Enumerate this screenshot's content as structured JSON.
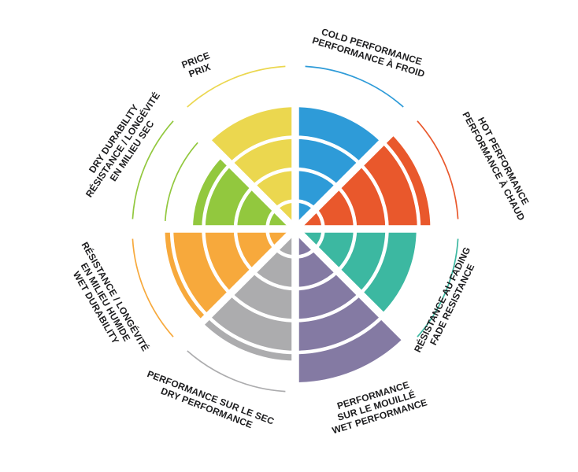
{
  "page": {
    "background": "#ffffff"
  },
  "chart_data": {
    "type": "polar-wheel",
    "title": "",
    "description_visible_text_only": "Eight-sector performance wheel, each sector filled to its rating level",
    "scale": {
      "min": 0,
      "max": 10,
      "gridline_values": [
        2,
        4,
        6,
        8
      ],
      "outer_marker_value": 10.5
    },
    "legend_position": "around-wheel",
    "grid": true,
    "segments": [
      {
        "id": "cold-performance",
        "label_lines": [
          "COLD PERFORMANCE",
          "PERFORMANCE À FROID"
        ],
        "value": 8.0,
        "color": "#2E9BD8",
        "outer_arc": true
      },
      {
        "id": "hot-performance",
        "label_lines": [
          "HOT PERFORMANCE",
          "PERFORMANCE À CHAUD"
        ],
        "value": 8.7,
        "color": "#E9582C",
        "outer_arc": true
      },
      {
        "id": "fade-resistance",
        "label_lines": [
          "RÉSISTANCE AU FADING",
          "FADE RESISTANCE"
        ],
        "value": 7.8,
        "color": "#3CB8A1",
        "outer_arc": true
      },
      {
        "id": "wet-performance",
        "label_lines": [
          "PERFORMANCE",
          "SUR LE MOUILLÉ",
          "WET PERFORMANCE"
        ],
        "value": 9.9,
        "color": "#847AA3",
        "outer_arc": false
      },
      {
        "id": "dry-performance",
        "label_lines": [
          "PERFORMANCE SUR LE SEC",
          "DRY PERFORMANCE"
        ],
        "value": 8.5,
        "color": "#ACACAE",
        "outer_arc": true
      },
      {
        "id": "wet-durability",
        "label_lines": [
          "RÉSISTANCE / LONGÉVITÉ",
          "EN MILIEU HUMIDE",
          "WET DURABILITY"
        ],
        "value": 8.4,
        "color": "#F7A93C",
        "outer_arc": true
      },
      {
        "id": "dry-durability",
        "label_lines": [
          "DRY DURABILITY",
          "RÉSISTANCE / LONGÉVITÉ",
          "EN MILIEU SEC"
        ],
        "value": 6.6,
        "color": "#92C83E",
        "outer_arc": true,
        "extra_arc_value": 8.4
      },
      {
        "id": "price",
        "label_lines": [
          "PRICE",
          "PRIX"
        ],
        "value": 7.9,
        "color": "#EBD74F",
        "outer_arc": true
      }
    ],
    "colors": {
      "gridline": "#ffffff",
      "label_text": "#1d1d1f"
    }
  }
}
